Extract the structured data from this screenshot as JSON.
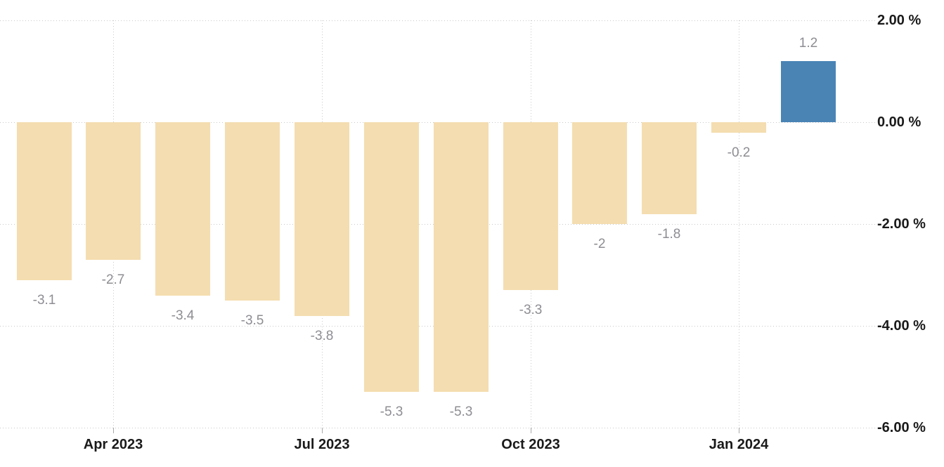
{
  "chart_data": {
    "type": "bar",
    "title": "",
    "unit": "%",
    "grid": true,
    "legend": false,
    "values": [
      -3.1,
      -2.7,
      -3.4,
      -3.5,
      -3.8,
      -5.3,
      -5.3,
      -3.3,
      -2,
      -1.8,
      -0.2,
      1.2
    ],
    "value_labels": [
      "-3.1",
      "-2.7",
      "-3.4",
      "-3.5",
      "-3.8",
      "-5.3",
      "-5.3",
      "-3.3",
      "-2",
      "-1.8",
      "-0.2",
      "1.2"
    ],
    "highlight_index": 11,
    "x_ticks": [
      {
        "label": "Apr 2023",
        "bar_index": 1
      },
      {
        "label": "Jul 2023",
        "bar_index": 4
      },
      {
        "label": "Oct 2023",
        "bar_index": 7
      },
      {
        "label": "Jan 2024",
        "bar_index": 10
      }
    ],
    "y_ticks": [
      {
        "label": "2.00 %",
        "value": 2
      },
      {
        "label": "0.00 %",
        "value": 0
      },
      {
        "label": "-2.00 %",
        "value": -2
      },
      {
        "label": "-4.00 %",
        "value": -4
      },
      {
        "label": "-6.00 %",
        "value": -6
      }
    ],
    "ylim": [
      -6,
      2
    ],
    "colors": {
      "bar": "#f4ddb0",
      "bar_highlight": "#4a84b5",
      "grid": "#c9c9c9",
      "tick": "#a9a9a9",
      "value_label": "#8d8d93",
      "axis_label": "#1a1a1a",
      "background": "#ffffff"
    }
  }
}
